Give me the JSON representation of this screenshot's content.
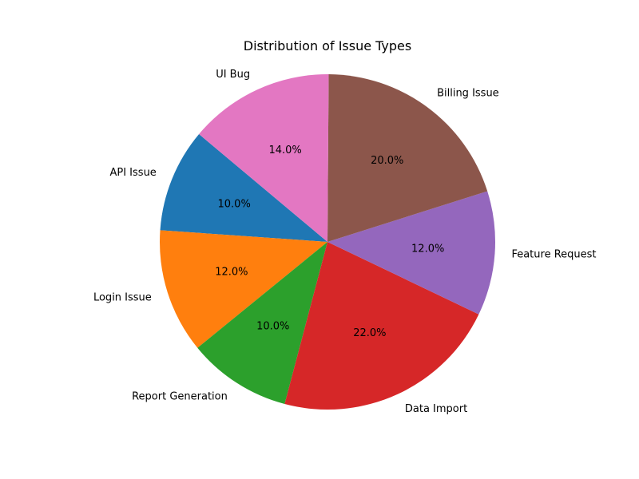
{
  "chart_data": {
    "type": "pie",
    "title": "Distribution of Issue Types",
    "start_angle_deg": 140,
    "direction": "counterclockwise",
    "legend": "none",
    "slices": [
      {
        "label": "API Issue",
        "value": 10.0,
        "pct_label": "10.0%",
        "color": "#1f77b4"
      },
      {
        "label": "Login Issue",
        "value": 12.0,
        "pct_label": "12.0%",
        "color": "#ff7f0e"
      },
      {
        "label": "Report Generation",
        "value": 10.0,
        "pct_label": "10.0%",
        "color": "#2ca02c"
      },
      {
        "label": "Data Import",
        "value": 22.0,
        "pct_label": "22.0%",
        "color": "#d62728"
      },
      {
        "label": "Feature Request",
        "value": 12.0,
        "pct_label": "12.0%",
        "color": "#9467bd"
      },
      {
        "label": "Billing Issue",
        "value": 20.0,
        "pct_label": "20.0%",
        "color": "#8c564b"
      },
      {
        "label": "UI Bug",
        "value": 14.0,
        "pct_label": "14.0%",
        "color": "#e377c2"
      }
    ]
  }
}
